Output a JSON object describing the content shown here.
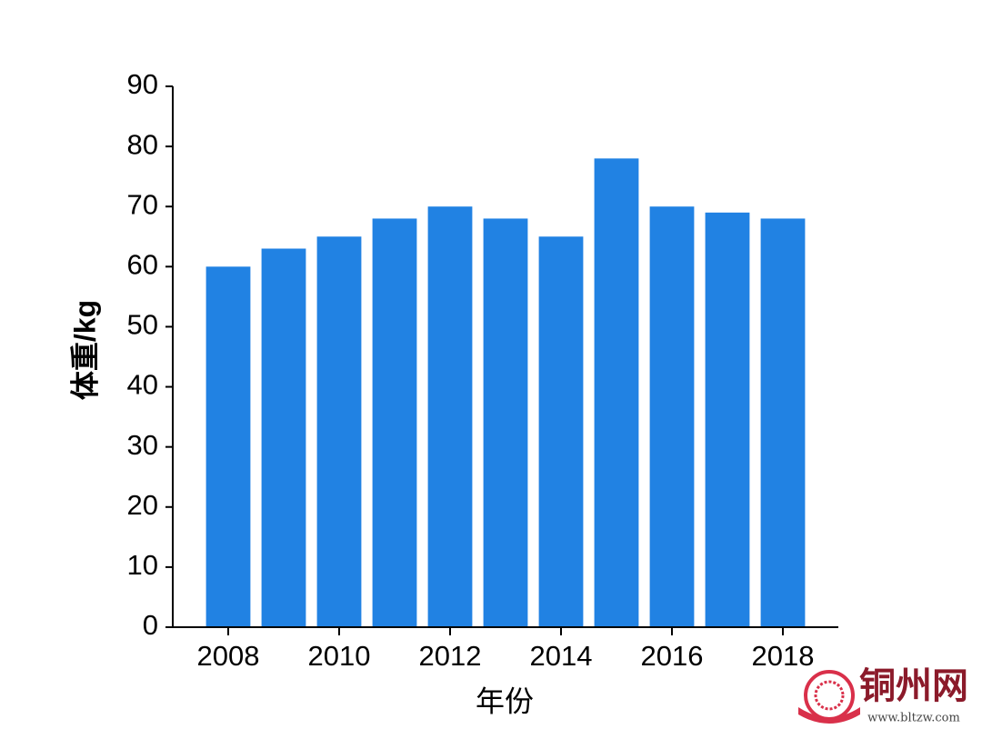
{
  "chart_data": {
    "type": "bar",
    "x": [
      2008,
      2009,
      2010,
      2011,
      2012,
      2013,
      2014,
      2015,
      2016,
      2017,
      2018
    ],
    "values": [
      60,
      63,
      65,
      68,
      70,
      68,
      65,
      78,
      70,
      69,
      68
    ],
    "color": "#2182e3",
    "xlim": [
      2007,
      2019
    ],
    "xticks": [
      2008,
      2010,
      2012,
      2014,
      2016,
      2018
    ],
    "ylim": [
      0,
      90
    ],
    "yticks": [
      0,
      10,
      20,
      30,
      40,
      50,
      60,
      70,
      80,
      90
    ],
    "xlabel": "年份",
    "ylabel": "体重/kg",
    "grid": false
  },
  "watermark": {
    "text": "铜州网",
    "url": "www.bltzw.com"
  }
}
